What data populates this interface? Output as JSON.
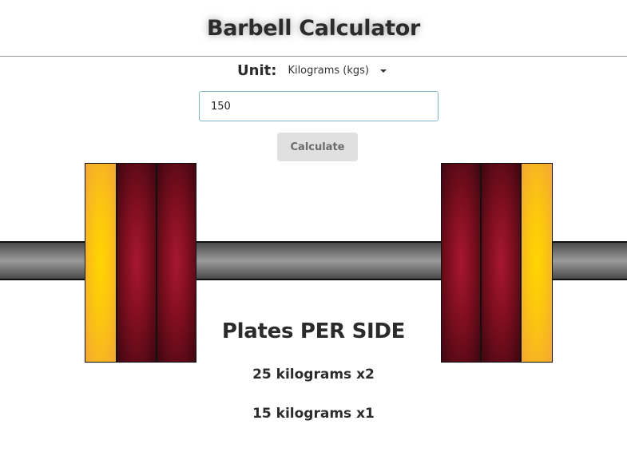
{
  "header": {
    "title": "Barbell Calculator"
  },
  "unit": {
    "label": "Unit:",
    "selected": "Kilograms (kgs)"
  },
  "weight_input": {
    "value": "150"
  },
  "calculate_button": {
    "label": "Calculate"
  },
  "results": {
    "heading": "Plates PER SIDE",
    "lines": [
      "25 kilograms x2",
      "15 kilograms x1"
    ]
  },
  "plates_per_side": [
    {
      "weight": 25,
      "count": 2,
      "color": "#8b1226"
    },
    {
      "weight": 15,
      "count": 1,
      "color": "#fcc60f"
    }
  ]
}
